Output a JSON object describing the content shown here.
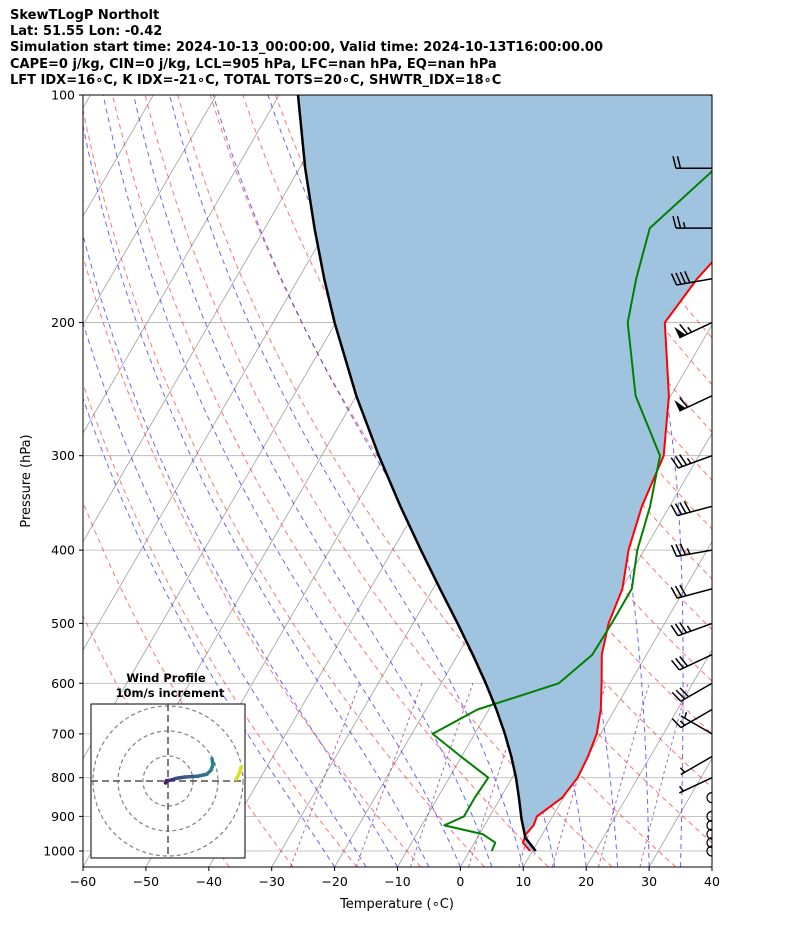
{
  "header": {
    "line1": "SkewTLogP Northolt",
    "line2": "Lat: 51.55   Lon: -0.42",
    "line3": "Simulation start time: 2024-10-13_00:00:00, Valid time: 2024-10-13T16:00:00.00",
    "line4": "CAPE=0 j/kg, CIN=0 j/kg, LCL=905 hPa, LFC=nan hPa, EQ=nan hPa",
    "line5": "LFT IDX=16∘C, K IDX=-21∘C, TOTAL TOTS=20∘C, SHWTR_IDX=18∘C"
  },
  "chart_data": {
    "type": "line",
    "subtype": "skew-T log-P diagram",
    "xlabel": "Temperature (∘C)",
    "ylabel": "Pressure (hPa)",
    "xlim": [
      -60,
      40
    ],
    "ylim": [
      1050,
      100
    ],
    "y_scale": "log",
    "x_ticks": [
      "−60",
      "−50",
      "−40",
      "−30",
      "−20",
      "−10",
      "0",
      "10",
      "20",
      "30",
      "40"
    ],
    "x_tick_values": [
      -60,
      -50,
      -40,
      -30,
      -20,
      -10,
      0,
      10,
      20,
      30,
      40
    ],
    "y_ticks": [
      "100",
      "200",
      "300",
      "400",
      "500",
      "600",
      "700",
      "800",
      "900",
      "1000"
    ],
    "y_tick_values": [
      100,
      200,
      300,
      400,
      500,
      600,
      700,
      800,
      900,
      1000
    ],
    "grid": true,
    "series": [
      {
        "role": "temperature",
        "color": "#ff0000",
        "pressure": [
          1000,
          975,
          950,
          925,
          900,
          850,
          800,
          750,
          700,
          650,
          600,
          550,
          500,
          450,
          400,
          350,
          300,
          250,
          200,
          175,
          150,
          125,
          100
        ],
        "values": [
          9.6,
          7.7,
          7.4,
          7.8,
          7.5,
          9.8,
          10.4,
          10.1,
          9.4,
          7.8,
          5.5,
          2.9,
          1.1,
          0.1,
          -2.5,
          -4.4,
          -5.6,
          -10.3,
          -17.7,
          -16.6,
          -14.0,
          -12.7,
          -9.4
        ]
      },
      {
        "role": "dewpoint",
        "color": "#008000",
        "pressure": [
          1000,
          975,
          950,
          925,
          900,
          850,
          800,
          750,
          700,
          650,
          600,
          550,
          500,
          450,
          400,
          350,
          300,
          250,
          200,
          175,
          150,
          125,
          100
        ],
        "values": [
          3.5,
          3.3,
          0.5,
          -6.4,
          -4.1,
          -4.1,
          -3.8,
          -10.1,
          -16.7,
          -11.8,
          -1.3,
          1.4,
          1.6,
          1.6,
          -1.1,
          -3.1,
          -6.2,
          -15.6,
          -23.6,
          -26.3,
          -28.8,
          -23.9,
          -13.3
        ]
      },
      {
        "role": "parcel",
        "color": "#000000",
        "pressure": [
          1000,
          960,
          905,
          850,
          800,
          750,
          700,
          650,
          600,
          550,
          500,
          450,
          400,
          350,
          300,
          250,
          200,
          175,
          150,
          125,
          100
        ],
        "values": [
          10.5,
          7.6,
          5.2,
          2.9,
          0.6,
          -2.1,
          -5.2,
          -8.8,
          -12.9,
          -17.6,
          -22.9,
          -28.9,
          -35.5,
          -42.8,
          -50.9,
          -60.0,
          -70.2,
          -75.9,
          -82.1,
          -89.1,
          -97.0
        ]
      }
    ],
    "shading": {
      "between": [
        "temperature",
        "parcel"
      ],
      "color": "#a0c4df"
    },
    "wind_barbs": {
      "pressure": [
        100,
        125,
        150,
        175,
        200,
        250,
        300,
        350,
        400,
        450,
        500,
        550,
        600,
        650,
        700,
        750,
        800,
        850,
        900,
        925,
        950,
        975,
        1000
      ],
      "speed_kt": [
        17,
        18,
        24,
        40,
        64,
        58,
        37,
        38,
        36,
        31,
        33,
        31,
        28,
        15,
        5,
        6,
        5,
        0,
        0,
        0,
        0,
        0,
        0
      ],
      "direction_deg": [
        275,
        270,
        270,
        260,
        245,
        245,
        250,
        255,
        260,
        255,
        250,
        245,
        240,
        240,
        300,
        240,
        245,
        0,
        0,
        0,
        0,
        0,
        0
      ]
    },
    "inset": {
      "title": "Wind Profile",
      "subtitle": "10m/s increment",
      "rings": [
        1,
        2,
        3
      ],
      "hodograph_u": [
        -1.0,
        -0.6,
        0.8,
        3.5,
        6.8,
        11.8,
        15.5,
        17.2,
        18.0,
        17.6
      ],
      "hodograph_v": [
        -0.8,
        0.1,
        0.3,
        1.1,
        1.6,
        1.9,
        2.7,
        4.3,
        6.6,
        8.9
      ],
      "surface_u": [
        -3.5,
        -2.1,
        -1.5
      ],
      "surface_v": [
        0.7,
        3.5,
        5.6
      ]
    },
    "reference_lines": {
      "dry_adiabat_color": "#ff0000",
      "moist_adiabat_color": "#0000ff",
      "mixing_ratio_color": "#800080",
      "isotherm_color": "#808080"
    }
  }
}
